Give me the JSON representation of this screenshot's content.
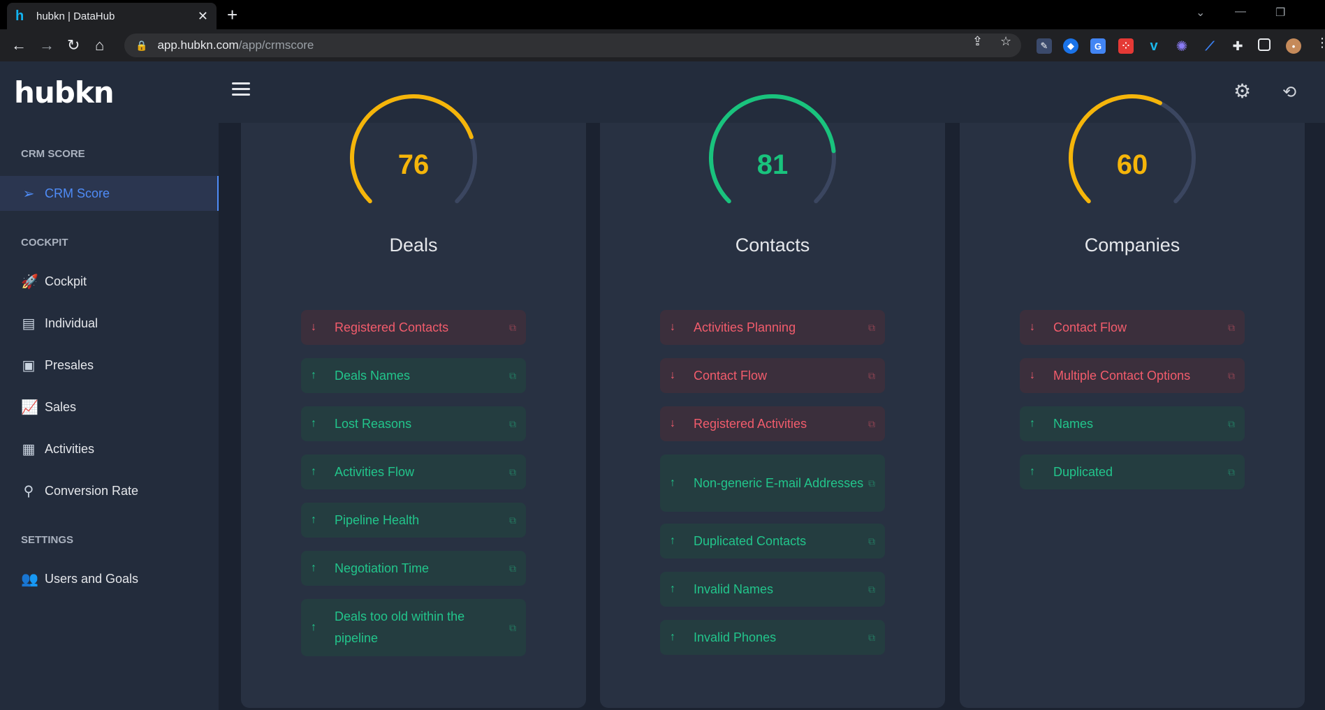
{
  "browser": {
    "tab_title": "hubkn | DataHub",
    "favicon": "h",
    "url_domain": "app.hubkn.com",
    "url_path": "/app/crmscore"
  },
  "header": {
    "logo": "hubkn"
  },
  "sidebar": {
    "sections": [
      {
        "title": "CRM SCORE",
        "items": [
          {
            "label": "CRM Score",
            "icon": "send-icon",
            "active": true
          }
        ]
      },
      {
        "title": "COCKPIT",
        "items": [
          {
            "label": "Cockpit",
            "icon": "rocket-icon"
          },
          {
            "label": "Individual",
            "icon": "individual-icon"
          },
          {
            "label": "Presales",
            "icon": "presales-icon"
          },
          {
            "label": "Sales",
            "icon": "sales-chart-icon"
          },
          {
            "label": "Activities",
            "icon": "calendar-icon"
          },
          {
            "label": "Conversion Rate",
            "icon": "magnifier-icon"
          }
        ]
      },
      {
        "title": "SETTINGS",
        "items": [
          {
            "label": "Users and Goals",
            "icon": "users-icon"
          }
        ]
      }
    ]
  },
  "colors": {
    "warning": "#f5b50a",
    "good": "#19c37d",
    "down": "#f25c6c",
    "up": "#22c58b",
    "active": "#4f8cf7"
  },
  "cards": [
    {
      "title": "Deals",
      "score": "76",
      "score_value": 76,
      "color": "#f5b50a",
      "metrics": [
        {
          "label": "Registered Contacts",
          "trend": "down"
        },
        {
          "label": "Deals Names",
          "trend": "up"
        },
        {
          "label": "Lost Reasons",
          "trend": "up"
        },
        {
          "label": "Activities Flow",
          "trend": "up"
        },
        {
          "label": "Pipeline Health",
          "trend": "up"
        },
        {
          "label": "Negotiation Time",
          "trend": "up"
        },
        {
          "label": "Deals too old within the pipeline",
          "trend": "up"
        }
      ]
    },
    {
      "title": "Contacts",
      "score": "81",
      "score_value": 81,
      "color": "#19c37d",
      "metrics": [
        {
          "label": "Activities Planning",
          "trend": "down"
        },
        {
          "label": "Contact Flow",
          "trend": "down"
        },
        {
          "label": "Registered Activities",
          "trend": "down"
        },
        {
          "label": "Non-generic E-mail Addresses",
          "trend": "up"
        },
        {
          "label": "Duplicated Contacts",
          "trend": "up"
        },
        {
          "label": "Invalid Names",
          "trend": "up"
        },
        {
          "label": "Invalid Phones",
          "trend": "up"
        }
      ]
    },
    {
      "title": "Companies",
      "score": "60",
      "score_value": 60,
      "color": "#f5b50a",
      "metrics": [
        {
          "label": "Contact Flow",
          "trend": "down"
        },
        {
          "label": "Multiple Contact Options",
          "trend": "down"
        },
        {
          "label": "Names",
          "trend": "up"
        },
        {
          "label": "Duplicated",
          "trend": "up"
        }
      ]
    }
  ]
}
